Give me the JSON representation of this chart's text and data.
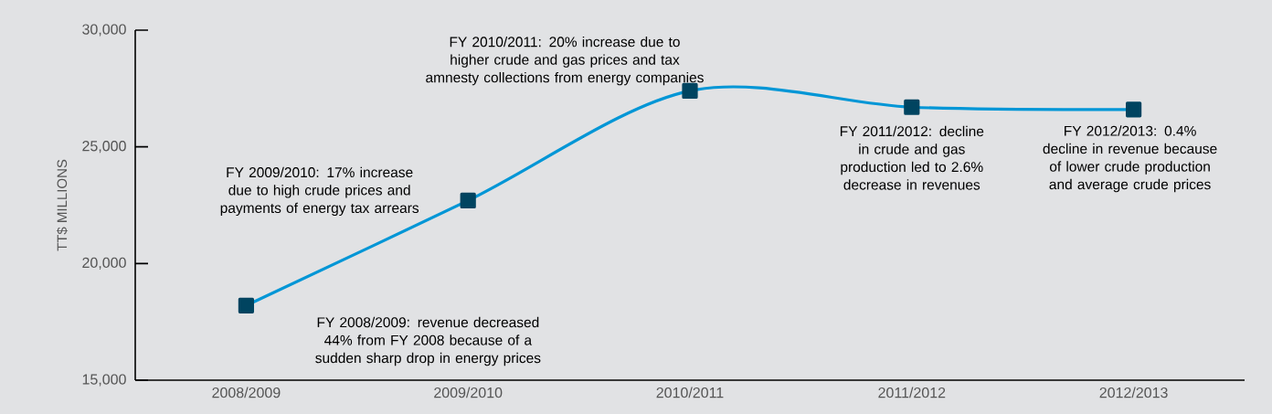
{
  "chart_data": {
    "type": "line",
    "ylabel": "TT$ MILLIONS",
    "categories": [
      "2008/2009",
      "2009/2010",
      "2010/2011",
      "2011/2012",
      "2012/2013"
    ],
    "series": [
      {
        "color": "#0096d6",
        "values": [
          18200,
          22700,
          27400,
          26700,
          26600
        ]
      }
    ],
    "ylim": [
      15000,
      30000
    ],
    "yticks": [
      {
        "value": 15000,
        "label": "15,000"
      },
      {
        "value": 20000,
        "label": "20,000"
      },
      {
        "value": 25000,
        "label": "25,000"
      },
      {
        "value": 30000,
        "label": "30,000"
      }
    ],
    "grid": false,
    "marker": "square",
    "line_style": "solid",
    "annotations": [
      "FY 2008/2009: revenue decreased 44% from FY 2008 because of a sudden sharp drop in energy prices",
      "FY 2009/2010: 17% increase due to high crude prices and payments of energy tax arrears",
      "FY 2010/2011: 20% increase due to higher crude and gas prices and tax amnesty collections from energy companies",
      "FY 2011/2012: decline in crude and gas production led to 2.6% decrease in revenues",
      "FY 2012/2013: 0.4% decline in revenue because of lower crude production and average crude prices"
    ]
  }
}
